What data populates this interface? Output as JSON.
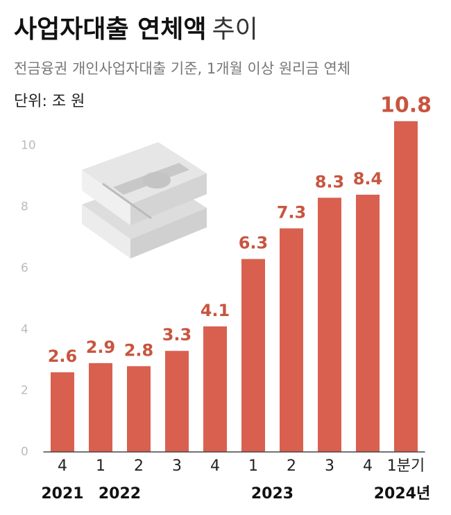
{
  "chart_data": {
    "type": "bar",
    "title": "사업자대출 연체액",
    "title_suffix": "추이",
    "subtitle": "전금융권 개인사업자대출 기준, 1개월 이상 원리금 연체",
    "unit": "단위: 조 원",
    "categories": [
      "4",
      "1",
      "2",
      "3",
      "4",
      "1",
      "2",
      "3",
      "4",
      "1분기"
    ],
    "year_labels": [
      "2021",
      "2022",
      null,
      null,
      null,
      "2023",
      null,
      null,
      null,
      "2024년"
    ],
    "values": [
      2.6,
      2.9,
      2.8,
      3.3,
      4.1,
      6.3,
      7.3,
      8.3,
      8.4,
      10.8
    ],
    "color": "#d9604f",
    "ylim": [
      0,
      11
    ],
    "yticks": [
      0,
      2,
      4,
      6,
      8,
      10
    ],
    "grid": false
  }
}
